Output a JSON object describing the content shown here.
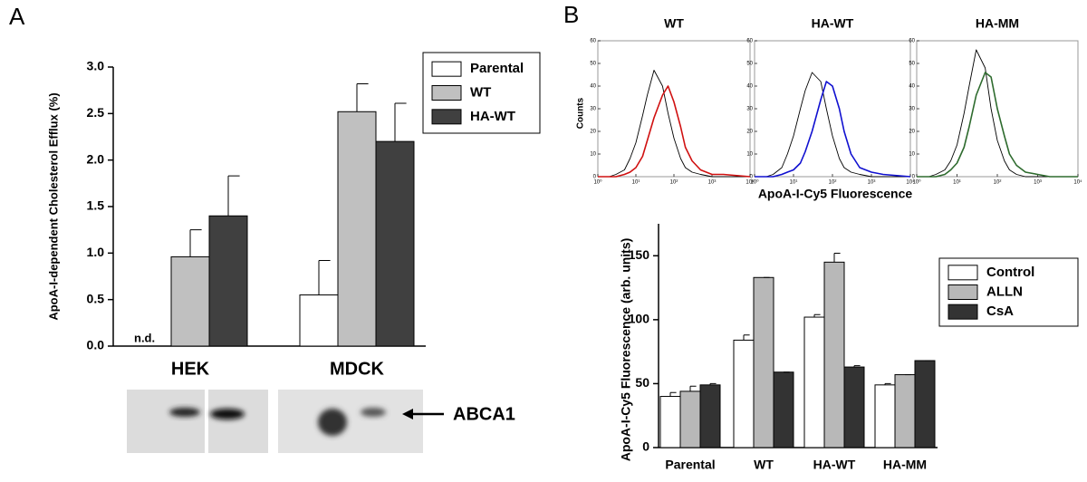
{
  "chart_data": [
    {
      "type": "bar",
      "panel_label": "A",
      "annotation": "n.d.",
      "blot_label": "ABCA1",
      "y_label": "ApoA-I-dependent Cholesterol Efflux (%)",
      "categories": [
        "HEK",
        "MDCK"
      ],
      "series": [
        {
          "name": "Parental",
          "color": "#ffffff",
          "values": [
            null,
            0.55
          ],
          "errors": [
            null,
            0.37
          ]
        },
        {
          "name": "WT",
          "color": "#c0c0c0",
          "values": [
            0.96,
            2.52
          ],
          "errors": [
            0.29,
            0.3
          ]
        },
        {
          "name": "HA-WT",
          "color": "#404040",
          "values": [
            1.4,
            2.2
          ],
          "errors": [
            0.43,
            0.41
          ]
        }
      ],
      "ylim": [
        0,
        3.0
      ],
      "yticks": [
        {
          "value": 0,
          "label": "0.0"
        },
        {
          "value": 0.5,
          "label": "0.5"
        },
        {
          "value": 1,
          "label": "1.0"
        },
        {
          "value": 1.5,
          "label": "1.5"
        },
        {
          "value": 2,
          "label": "2.0"
        },
        {
          "value": 2.5,
          "label": "2.5"
        },
        {
          "value": 3,
          "label": "3.0"
        }
      ]
    },
    {
      "type": "histogram-line",
      "panel_label": "B",
      "title": "WT",
      "y_label": "Counts",
      "log_x": true,
      "x": [
        1,
        2,
        3,
        5,
        7,
        10,
        15,
        20,
        30,
        50,
        70,
        100,
        150,
        200,
        300,
        500,
        1000,
        2000,
        10000
      ],
      "series": [
        {
          "color": "#000000",
          "values": [
            0,
            0,
            1,
            3,
            8,
            15,
            27,
            36,
            47,
            40,
            28,
            17,
            8,
            4,
            2,
            1,
            0,
            0,
            0
          ]
        },
        {
          "color": "#d01010",
          "values": [
            0,
            0,
            0,
            1,
            2,
            4,
            9,
            16,
            26,
            36,
            40,
            33,
            22,
            13,
            7,
            3,
            1,
            1,
            0
          ]
        }
      ],
      "xlim": [
        1,
        10000
      ],
      "xticks": [
        {
          "value": 1,
          "label": "10⁰"
        },
        {
          "value": 10,
          "label": "10¹"
        },
        {
          "value": 100,
          "label": "10²"
        },
        {
          "value": 1000,
          "label": "10³"
        },
        {
          "value": 10000,
          "label": "10⁴"
        }
      ],
      "ylim": [
        0,
        60
      ],
      "yticks": [
        0,
        10,
        20,
        30,
        40,
        50,
        60
      ]
    },
    {
      "type": "histogram-line",
      "title": "HA-WT",
      "x_label": "ApoA-I-Cy5 Fluorescence",
      "log_x": true,
      "x": [
        1,
        2,
        3,
        5,
        7,
        10,
        15,
        20,
        30,
        50,
        70,
        100,
        150,
        200,
        300,
        500,
        1000,
        2000,
        10000
      ],
      "series": [
        {
          "color": "#000000",
          "values": [
            0,
            0,
            1,
            4,
            10,
            18,
            30,
            38,
            46,
            42,
            30,
            18,
            8,
            4,
            2,
            1,
            0,
            0,
            0
          ]
        },
        {
          "color": "#1010d0",
          "values": [
            0,
            0,
            0,
            1,
            2,
            3,
            6,
            11,
            20,
            34,
            42,
            40,
            30,
            20,
            10,
            4,
            2,
            1,
            0
          ]
        }
      ],
      "xlim": [
        1,
        10000
      ],
      "xticks": [
        {
          "value": 1,
          "label": "10⁰"
        },
        {
          "value": 10,
          "label": "10¹"
        },
        {
          "value": 100,
          "label": "10²"
        },
        {
          "value": 1000,
          "label": "10³"
        },
        {
          "value": 10000,
          "label": "10⁴"
        }
      ],
      "ylim": [
        0,
        60
      ],
      "yticks": [
        0,
        10,
        20,
        30,
        40,
        50,
        60
      ]
    },
    {
      "type": "histogram-line",
      "title": "HA-MM",
      "log_x": true,
      "x": [
        1,
        2,
        3,
        5,
        7,
        10,
        15,
        20,
        30,
        50,
        70,
        100,
        150,
        200,
        300,
        500,
        1000,
        2000,
        10000
      ],
      "series": [
        {
          "color": "#000000",
          "values": [
            0,
            0,
            1,
            3,
            7,
            14,
            28,
            40,
            56,
            48,
            30,
            16,
            7,
            3,
            1,
            0,
            0,
            0,
            0
          ]
        },
        {
          "color": "#2e6b2e",
          "values": [
            0,
            0,
            0,
            1,
            3,
            6,
            13,
            22,
            36,
            46,
            44,
            30,
            18,
            10,
            5,
            2,
            1,
            0,
            0
          ]
        }
      ],
      "xlim": [
        1,
        10000
      ],
      "xticks": [
        {
          "value": 1,
          "label": "10⁰"
        },
        {
          "value": 10,
          "label": "10¹"
        },
        {
          "value": 100,
          "label": "10²"
        },
        {
          "value": 1000,
          "label": "10³"
        },
        {
          "value": 10000,
          "label": "10⁴"
        }
      ],
      "ylim": [
        0,
        60
      ],
      "yticks": [
        0,
        10,
        20,
        30,
        40,
        50,
        60
      ]
    },
    {
      "type": "bar",
      "y_label": "ApoA-I-Cy5 Fluorescence  (arb. units)",
      "categories": [
        "Parental",
        "WT",
        "HA-WT",
        "HA-MM"
      ],
      "series": [
        {
          "name": "Control",
          "color": "#ffffff",
          "values": [
            40,
            84,
            102,
            49
          ],
          "errors": [
            3,
            4,
            2,
            1
          ]
        },
        {
          "name": "ALLN",
          "color": "#b8b8b8",
          "values": [
            44,
            133,
            145,
            57
          ],
          "errors": [
            4,
            0,
            7,
            0
          ]
        },
        {
          "name": "CsA",
          "color": "#333333",
          "values": [
            49,
            59,
            63,
            68
          ],
          "errors": [
            1,
            0,
            1,
            0
          ]
        }
      ],
      "ylim": [
        0,
        175
      ],
      "yticks": [
        0,
        50,
        100,
        150
      ]
    }
  ]
}
